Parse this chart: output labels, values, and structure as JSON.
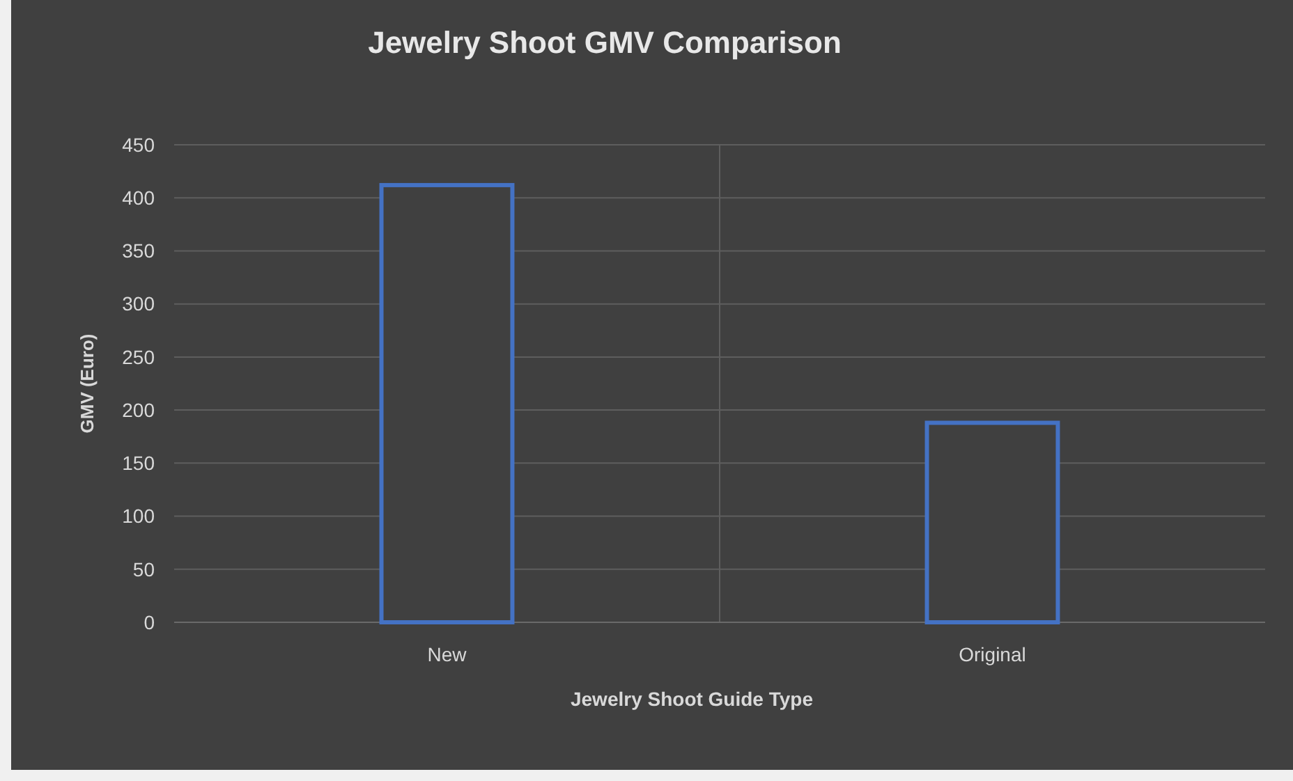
{
  "chart_data": {
    "type": "bar",
    "title": "Jewelry Shoot GMV Comparison",
    "xlabel": "Jewelry Shoot Guide Type",
    "ylabel": "GMV (Euro)",
    "categories": [
      "New",
      "Original"
    ],
    "values": [
      412,
      188
    ],
    "color": "#4472c4",
    "ylim": [
      0,
      450
    ],
    "yticks": [
      0,
      50,
      100,
      150,
      200,
      250,
      300,
      350,
      400,
      450
    ],
    "grid": true
  }
}
